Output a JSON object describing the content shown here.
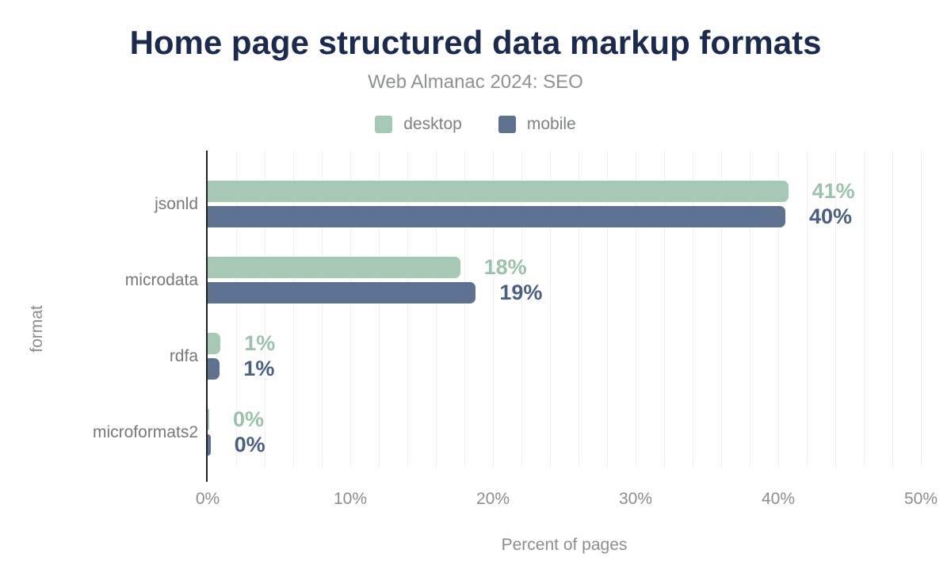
{
  "header": {
    "title": "Home page structured data markup formats",
    "subtitle": "Web Almanac 2024: SEO"
  },
  "legend": [
    {
      "label": "desktop",
      "color": "#a6c9b5"
    },
    {
      "label": "mobile",
      "color": "#5e7190"
    }
  ],
  "colors": {
    "title": "#1c2b4d",
    "subtitle_gray": "#8d9290",
    "axis_text_gray": "#8a8f8d",
    "category_gray": "#787878",
    "desktop_bar": "#a6c9b5",
    "mobile_bar": "#5e7190",
    "desktop_value_label": "#9cc1ac",
    "mobile_value_label": "#4b5f81",
    "axis_line": "#212121",
    "gridline": "#f0f0f1"
  },
  "chart_data": {
    "type": "bar",
    "orientation": "horizontal",
    "title": "Home page structured data markup formats",
    "subtitle": "Web Almanac 2024: SEO",
    "categories": [
      "jsonld",
      "microdata",
      "rdfa",
      "microformats2"
    ],
    "series": [
      {
        "name": "desktop",
        "color": "#a6c9b5",
        "label_color": "#9cc1ac",
        "values": [
          40.7,
          17.7,
          0.9,
          0.1
        ],
        "labels": [
          "41%",
          "18%",
          "1%",
          "0%"
        ]
      },
      {
        "name": "mobile",
        "color": "#5e7190",
        "label_color": "#4b5f81",
        "values": [
          40.5,
          18.8,
          0.85,
          0.2
        ],
        "labels": [
          "40%",
          "19%",
          "1%",
          "0%"
        ]
      }
    ],
    "xlabel": "Percent of pages",
    "ylabel": "format",
    "xlim": [
      0,
      50
    ],
    "x_ticks": [
      "0%",
      "10%",
      "20%",
      "30%",
      "40%",
      "50%"
    ],
    "x_tick_values": [
      0,
      10,
      20,
      30,
      40,
      50
    ],
    "grid": true,
    "grid_step": 2,
    "legend_position": "top"
  }
}
